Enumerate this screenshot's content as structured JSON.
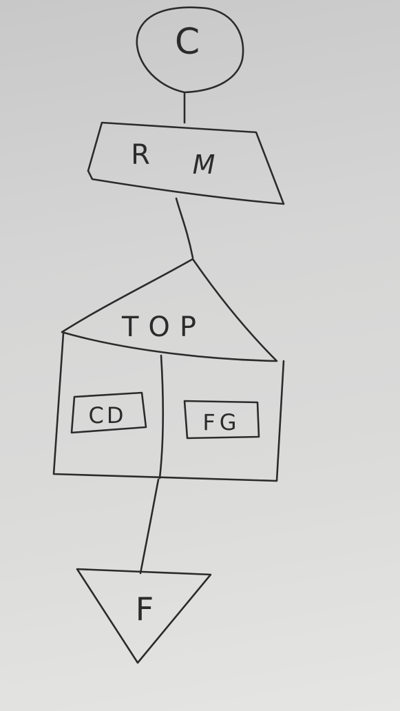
{
  "diagram": {
    "nodes": {
      "start": {
        "label": "C",
        "shape": "circle"
      },
      "manual": {
        "label_left": "R",
        "label_right": "M",
        "shape": "manual-input-trapezoid"
      },
      "top": {
        "label": "TOP",
        "shape": "dome-block"
      },
      "left_box": {
        "label": "CD",
        "shape": "rounded-rectangle"
      },
      "right_box": {
        "label": "FG",
        "shape": "rectangle"
      },
      "end": {
        "label": "F",
        "shape": "downward-triangle"
      }
    },
    "edges": [
      {
        "from": "start",
        "to": "manual"
      },
      {
        "from": "manual",
        "to": "top"
      },
      {
        "from": "top",
        "to": "end"
      }
    ],
    "ink_color": "#2b2b2b",
    "paper_color": "#e2e2e0"
  }
}
